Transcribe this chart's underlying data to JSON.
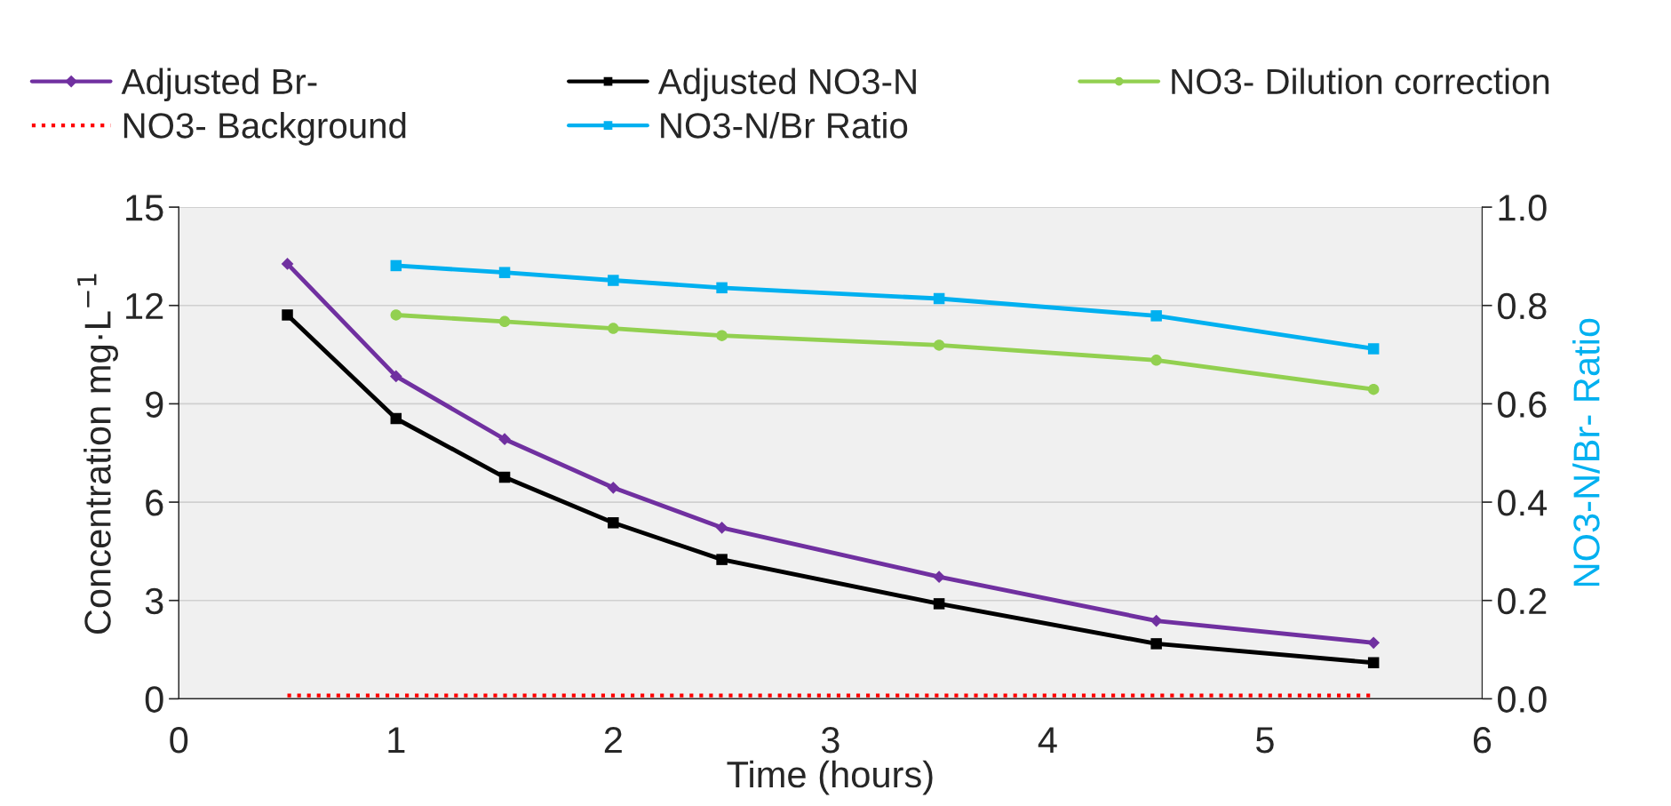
{
  "chart_data": {
    "type": "line",
    "xlabel": "Time (hours)",
    "ylabel": "Concentration mg·L$^{−1}$",
    "y2label": "NO3-N/Br- Ratio",
    "x": [
      0.5,
      1,
      1.5,
      2,
      2.5,
      3.5,
      4.5,
      5.5
    ],
    "series": [
      {
        "name": "Adjusted Br-",
        "color": "#7030a0",
        "marker": "diamond",
        "line_style": "solid",
        "values": [
          13.27,
          9.84,
          7.92,
          6.44,
          5.22,
          3.72,
          2.38,
          1.71
        ]
      },
      {
        "name": "NO3- Background",
        "color": "#ff0000",
        "marker": "none",
        "line_style": "dotted",
        "values": [
          0.1,
          0.1,
          0.1,
          0.1,
          0.1,
          0.1,
          0.1,
          0.1
        ]
      },
      {
        "name": "Adjusted NO3-N",
        "color": "#000000",
        "marker": "square",
        "line_style": "solid",
        "values": [
          11.71,
          8.55,
          6.76,
          5.37,
          4.25,
          2.9,
          1.68,
          1.1
        ]
      },
      {
        "name": "NO3-N/Br Ratio",
        "color": "#00b0f0",
        "marker": "square",
        "line_style": "solid",
        "axis": "y2",
        "values": [
          null,
          0.881,
          0.867,
          0.851,
          0.836,
          0.814,
          0.779,
          0.712
        ]
      },
      {
        "name": "NO3- Dilution correction",
        "color": "#92d050",
        "marker": "circle",
        "line_style": "solid",
        "values": [
          null,
          11.71,
          11.51,
          11.3,
          11.08,
          10.79,
          10.33,
          9.44
        ]
      }
    ],
    "xlim": [
      0,
      6
    ],
    "xticks": [
      0,
      1,
      2,
      3,
      4,
      5,
      6
    ],
    "ylim": [
      0,
      15
    ],
    "yticks": [
      0,
      3,
      6,
      9,
      12,
      15
    ],
    "y2lim": [
      0,
      1.0
    ],
    "y2ticks": [
      {
        "value": 0,
        "label": "0.0"
      },
      {
        "value": 0.2,
        "label": "0.2"
      },
      {
        "value": 0.4,
        "label": "0.4"
      },
      {
        "value": 0.6,
        "label": "0.6"
      },
      {
        "value": 0.8,
        "label": "0.8"
      },
      {
        "value": 1.0,
        "label": "1.0"
      }
    ],
    "grid": "y",
    "legend": "top"
  }
}
